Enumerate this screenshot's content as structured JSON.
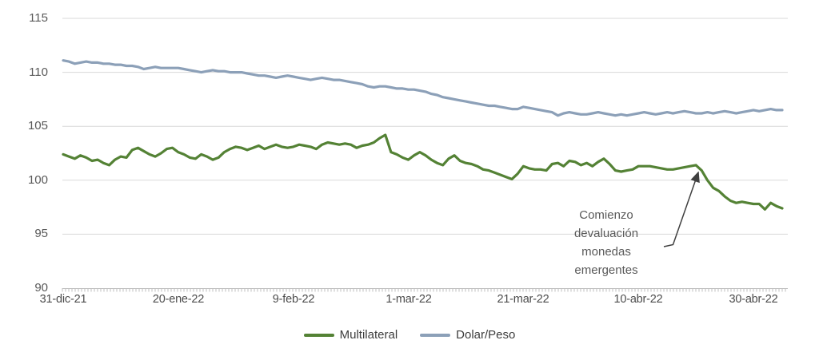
{
  "style": {
    "grid_color": "#d9d9d9",
    "axis_color": "#bfbfbf",
    "arrow_color": "#3f3f3f",
    "axis_label_color": "#595959",
    "background": "#ffffff"
  },
  "chart_data": {
    "type": "line",
    "title": "",
    "xlabel": "",
    "ylabel": "",
    "grid": true,
    "legend_position": "bottom",
    "ylim": [
      90,
      115
    ],
    "y_tick_labels": [
      "115",
      "110",
      "105",
      "100",
      "95",
      "90"
    ],
    "x_labels": [
      "31-dic-21",
      "20-ene-22",
      "9-feb-22",
      "1-mar-22",
      "21-mar-22",
      "10-abr-22",
      "30-abr-22"
    ],
    "x_label_interval": 20,
    "series": [
      {
        "name": "Multilateral",
        "color": "#548235",
        "values": [
          102.4,
          102.2,
          102.0,
          102.3,
          102.1,
          101.8,
          101.9,
          101.6,
          101.4,
          101.9,
          102.2,
          102.1,
          102.8,
          103.0,
          102.7,
          102.4,
          102.2,
          102.5,
          102.9,
          103.0,
          102.6,
          102.4,
          102.1,
          102.0,
          102.4,
          102.2,
          101.9,
          102.1,
          102.6,
          102.9,
          103.1,
          103.0,
          102.8,
          103.0,
          103.2,
          102.9,
          103.1,
          103.3,
          103.1,
          103.0,
          103.1,
          103.3,
          103.2,
          103.1,
          102.9,
          103.3,
          103.5,
          103.4,
          103.3,
          103.4,
          103.3,
          103.0,
          103.2,
          103.3,
          103.5,
          103.9,
          104.2,
          102.6,
          102.4,
          102.1,
          101.9,
          102.3,
          102.6,
          102.3,
          101.9,
          101.6,
          101.4,
          102.0,
          102.3,
          101.8,
          101.6,
          101.5,
          101.3,
          101.0,
          100.9,
          100.7,
          100.5,
          100.3,
          100.1,
          100.6,
          101.3,
          101.1,
          101.0,
          101.0,
          100.9,
          101.5,
          101.6,
          101.3,
          101.8,
          101.7,
          101.4,
          101.6,
          101.3,
          101.7,
          102.0,
          101.5,
          100.9,
          100.8,
          100.9,
          101.0,
          101.3,
          101.3,
          101.3,
          101.2,
          101.1,
          101.0,
          101.0,
          101.1,
          101.2,
          101.3,
          101.4,
          100.9,
          100.0,
          99.3,
          99.0,
          98.5,
          98.1,
          97.9,
          98.0,
          97.9,
          97.8,
          97.8,
          97.3,
          97.9,
          97.6,
          97.4
        ]
      },
      {
        "name": "Dolar/Peso",
        "color": "#8ca0b8",
        "values": [
          111.1,
          111.0,
          110.8,
          110.9,
          111.0,
          110.9,
          110.9,
          110.8,
          110.8,
          110.7,
          110.7,
          110.6,
          110.6,
          110.5,
          110.3,
          110.4,
          110.5,
          110.4,
          110.4,
          110.4,
          110.4,
          110.3,
          110.2,
          110.1,
          110.0,
          110.1,
          110.2,
          110.1,
          110.1,
          110.0,
          110.0,
          110.0,
          109.9,
          109.8,
          109.7,
          109.7,
          109.6,
          109.5,
          109.6,
          109.7,
          109.6,
          109.5,
          109.4,
          109.3,
          109.4,
          109.5,
          109.4,
          109.3,
          109.3,
          109.2,
          109.1,
          109.0,
          108.9,
          108.7,
          108.6,
          108.7,
          108.7,
          108.6,
          108.5,
          108.5,
          108.4,
          108.4,
          108.3,
          108.2,
          108.0,
          107.9,
          107.7,
          107.6,
          107.5,
          107.4,
          107.3,
          107.2,
          107.1,
          107.0,
          106.9,
          106.9,
          106.8,
          106.7,
          106.6,
          106.6,
          106.8,
          106.7,
          106.6,
          106.5,
          106.4,
          106.3,
          106.0,
          106.2,
          106.3,
          106.2,
          106.1,
          106.1,
          106.2,
          106.3,
          106.2,
          106.1,
          106.0,
          106.1,
          106.0,
          106.1,
          106.2,
          106.3,
          106.2,
          106.1,
          106.2,
          106.3,
          106.2,
          106.3,
          106.4,
          106.3,
          106.2,
          106.2,
          106.3,
          106.2,
          106.3,
          106.4,
          106.3,
          106.2,
          106.3,
          106.4,
          106.5,
          106.4,
          106.5,
          106.6,
          106.5,
          106.5
        ]
      }
    ],
    "annotation": {
      "text": "Comienzo\ndevaluación\nmonedas\nemergentes",
      "target_series": "Multilateral",
      "target_index": 110
    }
  }
}
